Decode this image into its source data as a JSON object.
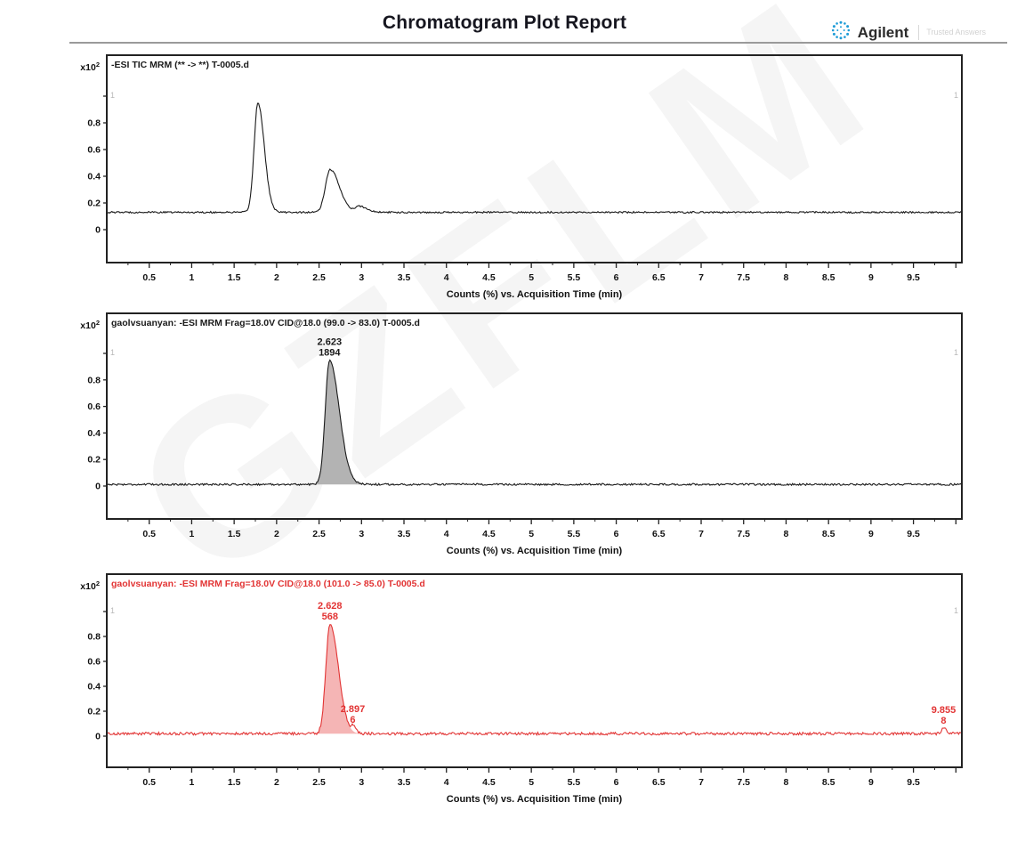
{
  "report": {
    "title": "Chromatogram Plot Report",
    "brand": {
      "name": "Agilent",
      "tagline": "Trusted Answers",
      "accent_color": "#1e9cd7"
    },
    "watermark": "GZFLM"
  },
  "axes": {
    "x_label": "Counts (%) vs. Acquisition Time (min)",
    "x_tick_values": [
      0.5,
      1,
      1.5,
      2,
      2.5,
      3,
      3.5,
      4,
      4.5,
      5,
      5.5,
      6,
      6.5,
      7,
      7.5,
      8,
      8.5,
      9,
      9.5
    ],
    "x_tick_labels": [
      "0.5",
      "1",
      "1.5",
      "2",
      "2.5",
      "3",
      "3.5",
      "4",
      "4.5",
      "5",
      "5.5",
      "6",
      "6.5",
      "7",
      "7.5",
      "8",
      "8.5",
      "9",
      "9.5"
    ],
    "x_range": [
      0,
      10.07
    ],
    "y_tick_values": [
      0,
      0.2,
      0.4,
      0.6,
      0.8
    ],
    "y_tick_labels": [
      "0",
      "0.2",
      "0.4",
      "0.6",
      "0.8"
    ],
    "y_range": [
      0,
      1
    ],
    "y_scale_base": "x10",
    "y_scale_exponent": "2",
    "corner_marker": "1",
    "grid": false,
    "legend": "none"
  },
  "chart_data": [
    {
      "type": "line",
      "title": "-ESI TIC MRM (** -> **) T-0005.d",
      "color": "#1a1a1a",
      "fill_color": null,
      "baseline": 0.13,
      "noise": 0.006,
      "xlabel": "Counts (%) vs. Acquisition Time (min)",
      "ylabel": "x10^2",
      "ylim": [
        0,
        1
      ],
      "xlim": [
        0,
        10.07
      ],
      "peaks": [
        {
          "rt": 1.78,
          "apex": 0.95,
          "sigma_l": 0.045,
          "sigma_r": 0.075,
          "filled": false,
          "rt_label": null,
          "area_label": null
        },
        {
          "rt": 2.63,
          "apex": 0.45,
          "sigma_l": 0.055,
          "sigma_r": 0.11,
          "filled": false,
          "rt_label": null,
          "area_label": null
        },
        {
          "rt": 2.97,
          "apex": 0.175,
          "sigma_l": 0.04,
          "sigma_r": 0.09,
          "filled": false,
          "rt_label": null,
          "area_label": null
        }
      ]
    },
    {
      "type": "line",
      "title": "gaolvsuanyan: -ESI MRM Frag=18.0V CID@18.0 (99.0 -> 83.0) T-0005.d",
      "color": "#1a1a1a",
      "fill_color": "#b3b3b3",
      "baseline": 0.012,
      "noise": 0.007,
      "xlabel": "Counts (%) vs. Acquisition Time (min)",
      "ylabel": "x10^2",
      "ylim": [
        0,
        1
      ],
      "xlim": [
        0,
        10.07
      ],
      "peaks": [
        {
          "rt": 2.623,
          "apex": 0.95,
          "sigma_l": 0.05,
          "sigma_r": 0.115,
          "filled": true,
          "rt_label": "2.623",
          "area_label": "1894"
        }
      ]
    },
    {
      "type": "line",
      "title": "gaolvsuanyan: -ESI MRM Frag=18.0V CID@18.0 (101.0 -> 85.0) T-0005.d",
      "color": "#e23434",
      "fill_color": "#f5b5b5",
      "baseline": 0.02,
      "noise": 0.011,
      "xlabel": "Counts (%) vs. Acquisition Time (min)",
      "ylabel": "x10^2",
      "ylim": [
        0,
        1
      ],
      "xlim": [
        0,
        10.07
      ],
      "peaks": [
        {
          "rt": 2.628,
          "apex": 0.9,
          "sigma_l": 0.048,
          "sigma_r": 0.1,
          "filled": true,
          "rt_label": "2.628",
          "area_label": "568"
        },
        {
          "rt": 2.897,
          "apex": 0.07,
          "sigma_l": 0.02,
          "sigma_r": 0.035,
          "filled": false,
          "rt_label": "2.897",
          "area_label": "6"
        },
        {
          "rt": 9.855,
          "apex": 0.065,
          "sigma_l": 0.025,
          "sigma_r": 0.035,
          "filled": false,
          "rt_label": "9.855",
          "area_label": "8"
        }
      ]
    }
  ]
}
